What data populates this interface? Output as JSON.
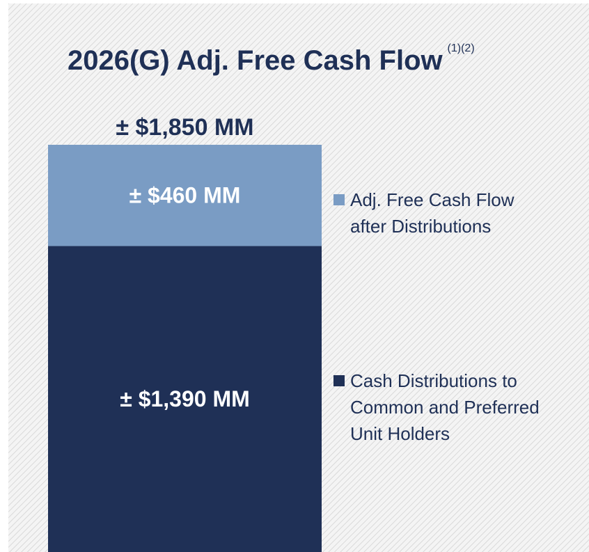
{
  "chart_data": {
    "type": "bar",
    "stacked": true,
    "title": "2026(G) Adj. Free Cash Flow",
    "title_superscript": "(1)(2)",
    "total": 1850,
    "total_label": "± $1,850 MM",
    "series": [
      {
        "name": "Cash Distributions to Common and Preferred Unit Holders",
        "color": "#1f3056",
        "values": [
          1390
        ],
        "value_labels": [
          "± $1,390 MM"
        ]
      },
      {
        "name": "Adj. Free Cash Flow after Distributions",
        "color": "#7a9cc4",
        "values": [
          460
        ],
        "value_labels": [
          "± $460 MM"
        ]
      }
    ],
    "legend": "right"
  }
}
